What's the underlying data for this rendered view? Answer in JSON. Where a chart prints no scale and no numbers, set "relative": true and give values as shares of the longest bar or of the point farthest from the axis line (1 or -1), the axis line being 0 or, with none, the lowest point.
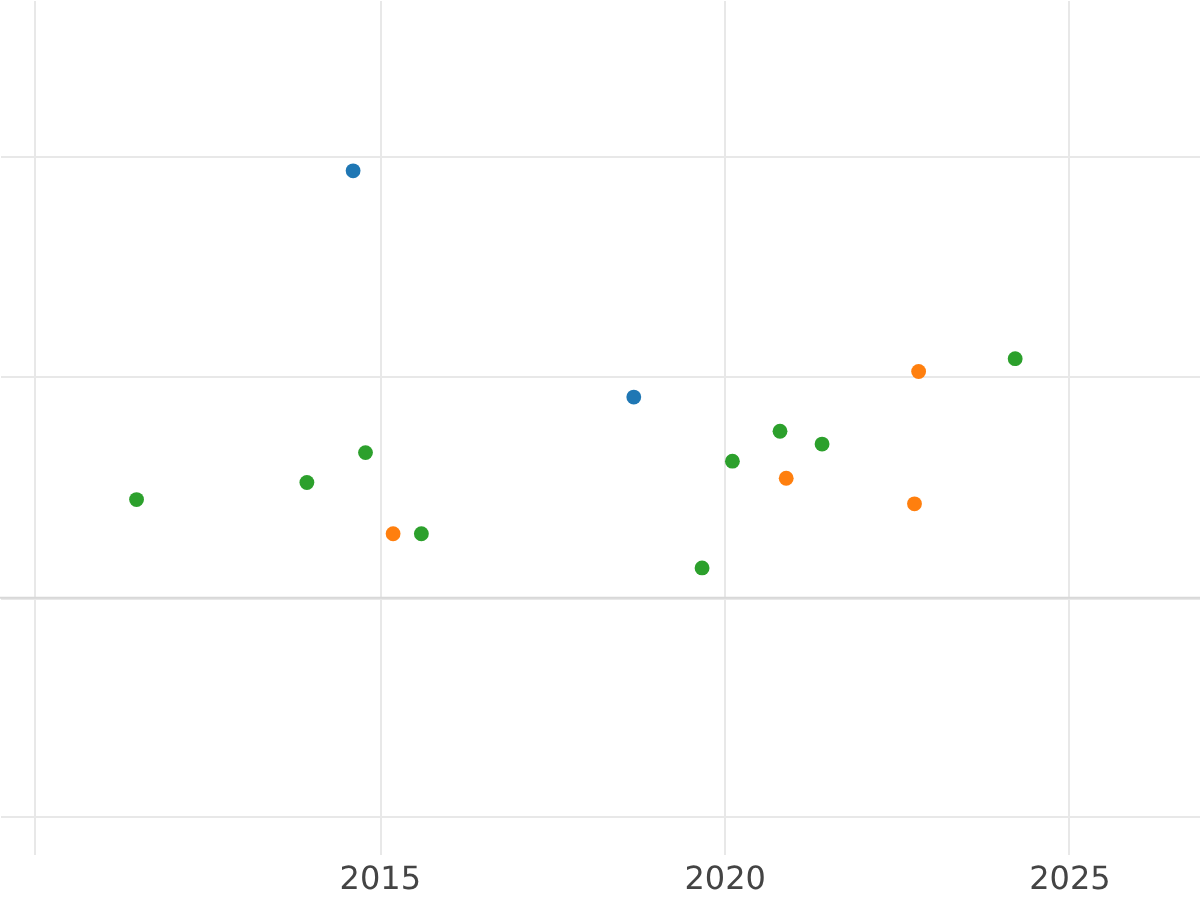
{
  "chart_data": {
    "type": "scatter",
    "relative": true,
    "grid": true,
    "marker": "circle",
    "xlim": [
      2009.5,
      2026.9
    ],
    "xticks": [
      {
        "value": 2010,
        "label": null
      },
      2015,
      2020,
      2025
    ],
    "series": [
      {
        "color": "#1f77b4",
        "x": [
          2014.62,
          2018.69
        ],
        "values": [
          1,
          0.47
        ]
      },
      {
        "color": "#ff7f0e",
        "x": [
          2015.2,
          2020.9,
          2022.82,
          2022.76
        ],
        "values": [
          0.15,
          0.28,
          0.53,
          0.22
        ]
      },
      {
        "color": "#2ca02c",
        "x": [
          2011.48,
          2013.95,
          2014.8,
          2015.61,
          2019.68,
          2020.12,
          2020.81,
          2021.42,
          2024.22
        ],
        "values": [
          0.23,
          0.27,
          0.34,
          0.15,
          0.07,
          0.32,
          0.39,
          0.36,
          0.56
        ]
      }
    ]
  }
}
